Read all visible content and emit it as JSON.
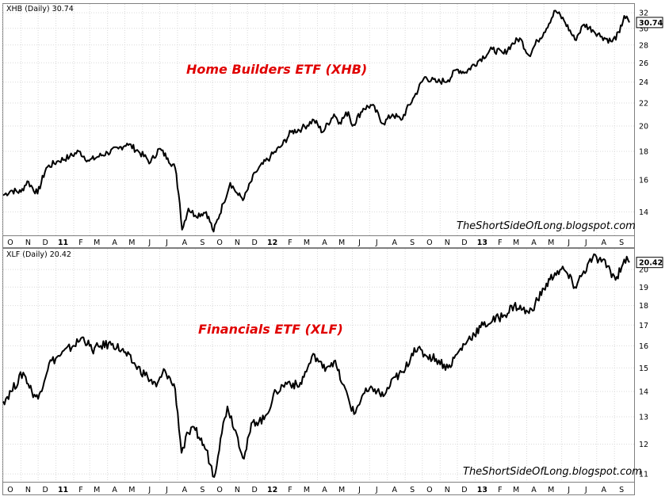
{
  "chart_data": [
    {
      "type": "line",
      "legend": "XHB (Daily) 30.74",
      "annotation": "Home Builders ETF (XHB)",
      "watermark": "TheShortSideOfLong.blogspot.com",
      "last_value_label": "30.74",
      "last_value": 30.74,
      "y_scale": "log",
      "ylim": [
        12.7,
        33.2
      ],
      "yticks": [
        14,
        16,
        18,
        20,
        22,
        24,
        26,
        28,
        30,
        32
      ],
      "xlim": [
        "2010-10-01",
        "2013-09-27"
      ],
      "x_ticks": [
        {
          "label": "O",
          "date": "2010-10-01"
        },
        {
          "label": "N",
          "date": "2010-11-01"
        },
        {
          "label": "D",
          "date": "2010-12-01"
        },
        {
          "label": "11",
          "date": "2011-01-01"
        },
        {
          "label": "F",
          "date": "2011-02-01"
        },
        {
          "label": "M",
          "date": "2011-03-01"
        },
        {
          "label": "A",
          "date": "2011-04-01"
        },
        {
          "label": "M",
          "date": "2011-05-01"
        },
        {
          "label": "J",
          "date": "2011-06-01"
        },
        {
          "label": "J",
          "date": "2011-07-01"
        },
        {
          "label": "A",
          "date": "2011-08-01"
        },
        {
          "label": "S",
          "date": "2011-09-01"
        },
        {
          "label": "O",
          "date": "2011-10-01"
        },
        {
          "label": "N",
          "date": "2011-11-01"
        },
        {
          "label": "D",
          "date": "2011-12-01"
        },
        {
          "label": "12",
          "date": "2012-01-01"
        },
        {
          "label": "F",
          "date": "2012-02-01"
        },
        {
          "label": "M",
          "date": "2012-03-01"
        },
        {
          "label": "A",
          "date": "2012-04-01"
        },
        {
          "label": "M",
          "date": "2012-05-01"
        },
        {
          "label": "J",
          "date": "2012-06-01"
        },
        {
          "label": "J",
          "date": "2012-07-01"
        },
        {
          "label": "A",
          "date": "2012-08-01"
        },
        {
          "label": "S",
          "date": "2012-09-01"
        },
        {
          "label": "O",
          "date": "2012-10-01"
        },
        {
          "label": "N",
          "date": "2012-11-01"
        },
        {
          "label": "D",
          "date": "2012-12-01"
        },
        {
          "label": "13",
          "date": "2013-01-01"
        },
        {
          "label": "F",
          "date": "2013-02-01"
        },
        {
          "label": "M",
          "date": "2013-03-01"
        },
        {
          "label": "A",
          "date": "2013-04-01"
        },
        {
          "label": "M",
          "date": "2013-05-01"
        },
        {
          "label": "J",
          "date": "2013-06-01"
        },
        {
          "label": "J",
          "date": "2013-07-01"
        },
        {
          "label": "A",
          "date": "2013-08-01"
        },
        {
          "label": "S",
          "date": "2013-09-01"
        }
      ],
      "series": [
        {
          "values": [
            [
              "2010-10-01",
              15.0
            ],
            [
              "2010-10-15",
              15.3
            ],
            [
              "2010-11-01",
              15.2
            ],
            [
              "2010-11-12",
              15.9
            ],
            [
              "2010-11-30",
              15.1
            ],
            [
              "2010-12-15",
              16.8
            ],
            [
              "2011-01-05",
              17.3
            ],
            [
              "2011-01-25",
              17.6
            ],
            [
              "2011-02-10",
              18.0
            ],
            [
              "2011-02-28",
              17.3
            ],
            [
              "2011-03-15",
              17.6
            ],
            [
              "2011-04-01",
              17.9
            ],
            [
              "2011-04-20",
              18.2
            ],
            [
              "2011-05-05",
              18.6
            ],
            [
              "2011-05-25",
              18.0
            ],
            [
              "2011-06-15",
              17.2
            ],
            [
              "2011-06-30",
              18.2
            ],
            [
              "2011-07-15",
              17.5
            ],
            [
              "2011-07-28",
              16.8
            ],
            [
              "2011-08-05",
              14.5
            ],
            [
              "2011-08-09",
              13.0
            ],
            [
              "2011-08-20",
              14.2
            ],
            [
              "2011-09-01",
              13.8
            ],
            [
              "2011-09-20",
              14.0
            ],
            [
              "2011-10-03",
              12.9
            ],
            [
              "2011-10-20",
              14.5
            ],
            [
              "2011-11-01",
              15.8
            ],
            [
              "2011-11-15",
              15.0
            ],
            [
              "2011-11-25",
              14.8
            ],
            [
              "2011-12-15",
              16.5
            ],
            [
              "2012-01-10",
              17.6
            ],
            [
              "2012-01-31",
              18.5
            ],
            [
              "2012-02-15",
              19.5
            ],
            [
              "2012-03-05",
              19.8
            ],
            [
              "2012-03-26",
              20.5
            ],
            [
              "2012-04-10",
              19.5
            ],
            [
              "2012-04-30",
              21.0
            ],
            [
              "2012-05-10",
              20.3
            ],
            [
              "2012-05-25",
              21.2
            ],
            [
              "2012-06-01",
              20.0
            ],
            [
              "2012-06-20",
              21.5
            ],
            [
              "2012-07-05",
              21.8
            ],
            [
              "2012-07-25",
              20.2
            ],
            [
              "2012-08-10",
              21.0
            ],
            [
              "2012-08-25",
              20.5
            ],
            [
              "2012-09-17",
              22.6
            ],
            [
              "2012-10-05",
              24.5
            ],
            [
              "2012-10-25",
              24.0
            ],
            [
              "2012-11-15",
              24.2
            ],
            [
              "2012-11-30",
              25.3
            ],
            [
              "2012-12-15",
              25.0
            ],
            [
              "2013-01-10",
              26.4
            ],
            [
              "2013-01-31",
              27.5
            ],
            [
              "2013-02-20",
              27.0
            ],
            [
              "2013-03-05",
              28.0
            ],
            [
              "2013-03-20",
              28.8
            ],
            [
              "2013-04-05",
              26.8
            ],
            [
              "2013-04-20",
              28.5
            ],
            [
              "2013-05-01",
              29.5
            ],
            [
              "2013-05-21",
              32.3
            ],
            [
              "2013-06-05",
              31.0
            ],
            [
              "2013-06-24",
              28.6
            ],
            [
              "2013-07-10",
              30.5
            ],
            [
              "2013-07-25",
              29.8
            ],
            [
              "2013-08-10",
              29.0
            ],
            [
              "2013-08-28",
              28.4
            ],
            [
              "2013-09-10",
              29.5
            ],
            [
              "2013-09-18",
              31.6
            ],
            [
              "2013-09-27",
              30.74
            ]
          ]
        }
      ]
    },
    {
      "type": "line",
      "legend": "XLF (Daily) 20.42",
      "annotation": "Financials ETF (XLF)",
      "watermark": "TheShortSideOfLong.blogspot.com",
      "last_value_label": "20.42",
      "last_value": 20.42,
      "y_scale": "log",
      "ylim": [
        10.75,
        21.25
      ],
      "yticks": [
        11,
        12,
        13,
        14,
        15,
        16,
        17,
        18,
        19,
        20
      ],
      "xlim": [
        "2010-10-01",
        "2013-09-27"
      ],
      "x_ticks": [
        {
          "label": "O",
          "date": "2010-10-01"
        },
        {
          "label": "N",
          "date": "2010-11-01"
        },
        {
          "label": "D",
          "date": "2010-12-01"
        },
        {
          "label": "11",
          "date": "2011-01-01"
        },
        {
          "label": "F",
          "date": "2011-02-01"
        },
        {
          "label": "M",
          "date": "2011-03-01"
        },
        {
          "label": "A",
          "date": "2011-04-01"
        },
        {
          "label": "M",
          "date": "2011-05-01"
        },
        {
          "label": "J",
          "date": "2011-06-01"
        },
        {
          "label": "J",
          "date": "2011-07-01"
        },
        {
          "label": "A",
          "date": "2011-08-01"
        },
        {
          "label": "S",
          "date": "2011-09-01"
        },
        {
          "label": "O",
          "date": "2011-10-01"
        },
        {
          "label": "N",
          "date": "2011-11-01"
        },
        {
          "label": "D",
          "date": "2011-12-01"
        },
        {
          "label": "12",
          "date": "2012-01-01"
        },
        {
          "label": "F",
          "date": "2012-02-01"
        },
        {
          "label": "M",
          "date": "2012-03-01"
        },
        {
          "label": "A",
          "date": "2012-04-01"
        },
        {
          "label": "M",
          "date": "2012-05-01"
        },
        {
          "label": "J",
          "date": "2012-06-01"
        },
        {
          "label": "J",
          "date": "2012-07-01"
        },
        {
          "label": "A",
          "date": "2012-08-01"
        },
        {
          "label": "S",
          "date": "2012-09-01"
        },
        {
          "label": "O",
          "date": "2012-10-01"
        },
        {
          "label": "N",
          "date": "2012-11-01"
        },
        {
          "label": "D",
          "date": "2012-12-01"
        },
        {
          "label": "13",
          "date": "2013-01-01"
        },
        {
          "label": "F",
          "date": "2013-02-01"
        },
        {
          "label": "M",
          "date": "2013-03-01"
        },
        {
          "label": "A",
          "date": "2013-04-01"
        },
        {
          "label": "M",
          "date": "2013-05-01"
        },
        {
          "label": "J",
          "date": "2013-06-01"
        },
        {
          "label": "J",
          "date": "2013-07-01"
        },
        {
          "label": "A",
          "date": "2013-08-01"
        },
        {
          "label": "S",
          "date": "2013-09-01"
        }
      ],
      "series": [
        {
          "values": [
            [
              "2010-10-01",
              13.6
            ],
            [
              "2010-10-15",
              14.0
            ],
            [
              "2010-11-05",
              14.8
            ],
            [
              "2010-11-20",
              14.0
            ],
            [
              "2010-12-01",
              13.7
            ],
            [
              "2010-12-20",
              15.2
            ],
            [
              "2011-01-10",
              15.6
            ],
            [
              "2011-01-31",
              16.0
            ],
            [
              "2011-02-18",
              16.4
            ],
            [
              "2011-03-05",
              15.8
            ],
            [
              "2011-03-20",
              16.0
            ],
            [
              "2011-04-10",
              16.1
            ],
            [
              "2011-04-30",
              15.7
            ],
            [
              "2011-05-20",
              15.1
            ],
            [
              "2011-06-10",
              14.6
            ],
            [
              "2011-06-25",
              14.2
            ],
            [
              "2011-07-10",
              14.9
            ],
            [
              "2011-07-28",
              14.1
            ],
            [
              "2011-08-08",
              11.7
            ],
            [
              "2011-08-20",
              12.4
            ],
            [
              "2011-09-01",
              12.5
            ],
            [
              "2011-09-20",
              11.8
            ],
            [
              "2011-10-04",
              10.9
            ],
            [
              "2011-10-15",
              12.2
            ],
            [
              "2011-10-27",
              13.4
            ],
            [
              "2011-11-10",
              12.5
            ],
            [
              "2011-11-25",
              11.5
            ],
            [
              "2011-12-10",
              12.8
            ],
            [
              "2011-12-30",
              12.9
            ],
            [
              "2012-01-20",
              14.0
            ],
            [
              "2012-02-10",
              14.4
            ],
            [
              "2012-02-29",
              14.2
            ],
            [
              "2012-03-15",
              15.0
            ],
            [
              "2012-03-27",
              15.6
            ],
            [
              "2012-04-10",
              15.0
            ],
            [
              "2012-04-30",
              15.3
            ],
            [
              "2012-05-15",
              14.3
            ],
            [
              "2012-06-04",
              13.1
            ],
            [
              "2012-06-20",
              13.9
            ],
            [
              "2012-07-10",
              14.1
            ],
            [
              "2012-07-25",
              13.8
            ],
            [
              "2012-08-15",
              14.6
            ],
            [
              "2012-08-30",
              14.8
            ],
            [
              "2012-09-17",
              15.9
            ],
            [
              "2012-10-05",
              15.6
            ],
            [
              "2012-10-25",
              15.4
            ],
            [
              "2012-11-15",
              15.0
            ],
            [
              "2012-11-30",
              15.6
            ],
            [
              "2012-12-20",
              16.3
            ],
            [
              "2013-01-15",
              17.0
            ],
            [
              "2013-01-31",
              17.2
            ],
            [
              "2013-02-20",
              17.5
            ],
            [
              "2013-03-10",
              18.0
            ],
            [
              "2013-03-25",
              17.8
            ],
            [
              "2013-04-05",
              17.6
            ],
            [
              "2013-04-20",
              18.3
            ],
            [
              "2013-05-01",
              18.9
            ],
            [
              "2013-05-20",
              19.8
            ],
            [
              "2013-06-05",
              20.0
            ],
            [
              "2013-06-24",
              19.0
            ],
            [
              "2013-07-05",
              19.6
            ],
            [
              "2013-07-25",
              20.7
            ],
            [
              "2013-08-05",
              20.6
            ],
            [
              "2013-08-20",
              20.2
            ],
            [
              "2013-09-03",
              19.4
            ],
            [
              "2013-09-18",
              20.6
            ],
            [
              "2013-09-27",
              20.42
            ]
          ]
        }
      ]
    }
  ]
}
